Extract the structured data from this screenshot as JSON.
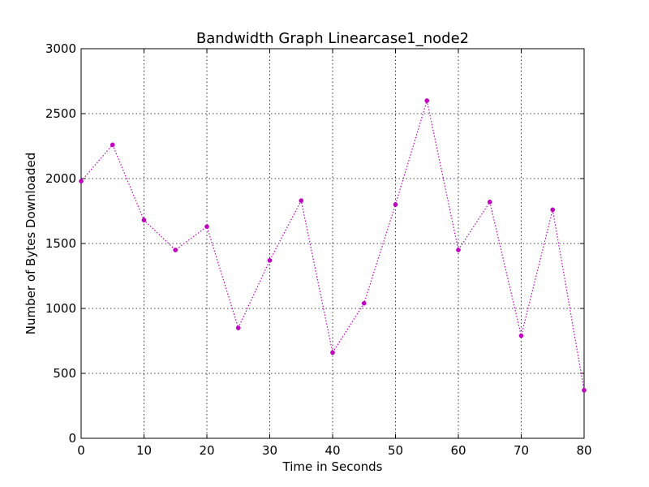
{
  "chart_data": {
    "type": "line",
    "title": "Bandwidth Graph Linearcase1_node2",
    "xlabel": "Time in Seconds",
    "ylabel": "Number of Bytes Downloaded",
    "xlim": [
      0,
      80
    ],
    "ylim": [
      0,
      3000
    ],
    "xticks": [
      0,
      10,
      20,
      30,
      40,
      50,
      60,
      70,
      80
    ],
    "yticks": [
      0,
      500,
      1000,
      1500,
      2000,
      2500,
      3000
    ],
    "grid": true,
    "line_style": "dotted",
    "marker": "dot",
    "color": "#bf00bf",
    "series": [
      {
        "x": [
          0,
          5,
          10,
          15,
          20,
          25,
          30,
          35,
          40,
          45,
          50,
          55,
          60,
          65,
          70,
          75,
          80
        ],
        "y": [
          1980,
          2260,
          1680,
          1450,
          1630,
          850,
          1370,
          1830,
          660,
          1040,
          1800,
          2600,
          1450,
          1820,
          790,
          1760,
          370
        ]
      }
    ]
  }
}
